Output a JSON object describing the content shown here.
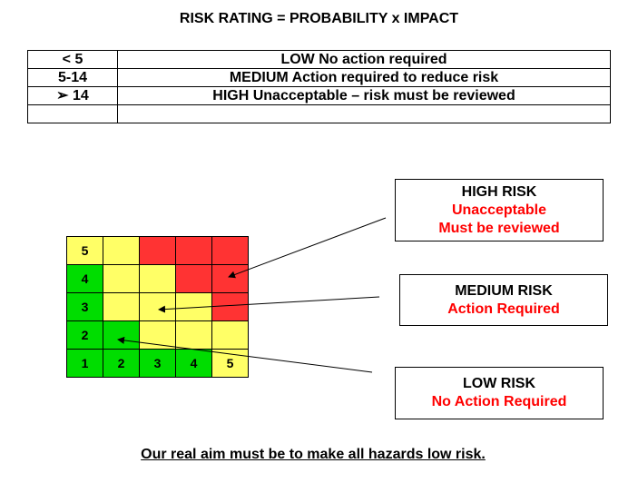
{
  "header": {
    "title": "RISK RATING = PROBABILITY x IMPACT"
  },
  "table": {
    "rows": [
      [
        "< 5",
        "LOW No action required"
      ],
      [
        "5-14",
        "MEDIUM Action required to reduce risk"
      ],
      [
        "➢  14",
        "HIGH  Unacceptable – risk must be reviewed"
      ]
    ]
  },
  "grid": {
    "rows": [
      [
        {
          "color": "#ffff66",
          "label": "5"
        },
        {
          "color": "#ffff66"
        },
        {
          "color": "#ff3333"
        },
        {
          "color": "#ff3333"
        },
        {
          "color": "#ff3333"
        }
      ],
      [
        {
          "color": "#00dd00",
          "label": "4"
        },
        {
          "color": "#ffff66"
        },
        {
          "color": "#ffff66"
        },
        {
          "color": "#ff3333"
        },
        {
          "color": "#ff3333"
        }
      ],
      [
        {
          "color": "#00dd00",
          "label": "3"
        },
        {
          "color": "#ffff66"
        },
        {
          "color": "#ffff66"
        },
        {
          "color": "#ffff66"
        },
        {
          "color": "#ff3333"
        }
      ],
      [
        {
          "color": "#00dd00",
          "label": "2"
        },
        {
          "color": "#00dd00"
        },
        {
          "color": "#ffff66"
        },
        {
          "color": "#ffff66"
        },
        {
          "color": "#ffff66"
        }
      ],
      [
        {
          "color": "#00dd00",
          "label": "1"
        },
        {
          "color": "#00dd00",
          "label": "2"
        },
        {
          "color": "#00dd00",
          "label": "3"
        },
        {
          "color": "#00dd00",
          "label": "4"
        },
        {
          "color": "#ffff66",
          "label": "5"
        }
      ]
    ]
  },
  "boxes": {
    "high": {
      "heading": "HIGH RISK",
      "lines": [
        "Unacceptable",
        "Must be reviewed"
      ]
    },
    "medium": {
      "heading": "MEDIUM RISK",
      "lines": [
        "Action Required"
      ]
    },
    "low": {
      "heading": "LOW RISK",
      "lines": [
        "No Action Required"
      ]
    }
  },
  "footer": "Our real aim must be to make all hazards low risk."
}
